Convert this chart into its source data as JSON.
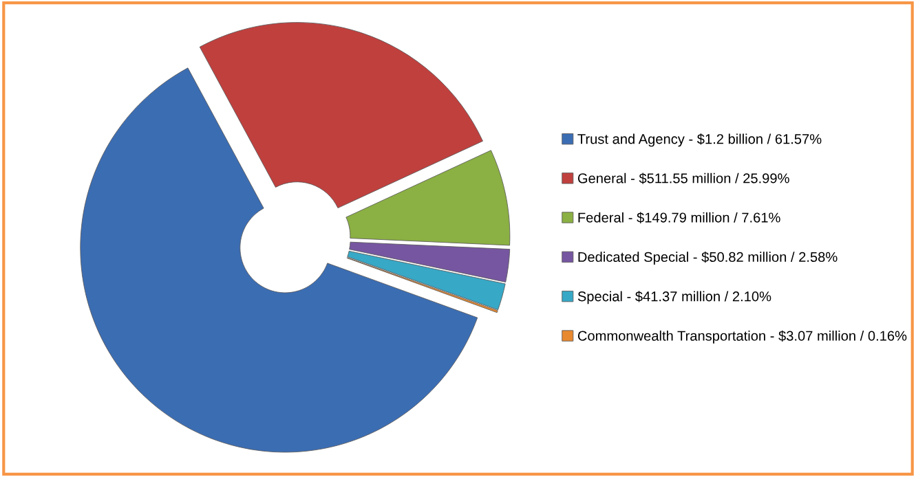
{
  "chart_data": {
    "type": "donut",
    "categories": [
      "Trust and Agency - $1.2 billion / 61.57%",
      "General - $511.55 million / 25.99%",
      "Federal - $149.79 million / 7.61%",
      "Dedicated Special - $50.82 million / 2.58%",
      "Special - $41.37 million / 2.10%",
      "Commonwealth Transportation - $3.07 million / 0.16%"
    ],
    "values": [
      61.57,
      25.99,
      7.61,
      2.58,
      2.1,
      0.16
    ],
    "colors": [
      "#3b6db3",
      "#c0403e",
      "#8bb043",
      "#7656a1",
      "#37a8c6",
      "#e8892f"
    ],
    "legend": "right"
  }
}
